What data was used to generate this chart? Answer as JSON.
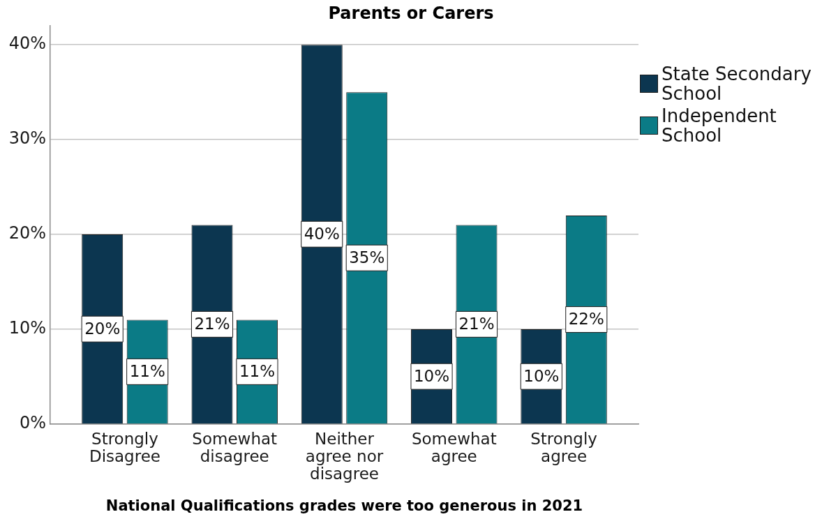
{
  "chart_data": {
    "type": "bar",
    "title": "Parents or Carers",
    "xlabel": "National Qualifications grades were too generous in 2021",
    "categories": [
      "Strongly Disagree",
      "Somewhat disagree",
      "Neither agree nor disagree",
      "Somewhat agree",
      "Strongly agree"
    ],
    "series": [
      {
        "name": "State Secondary School",
        "color": "#0c3650",
        "values": [
          20,
          21,
          40,
          10,
          10
        ],
        "value_labels": [
          "20%",
          "21%",
          "40%",
          "10%",
          "10%"
        ]
      },
      {
        "name": "Independent School",
        "color": "#0b7b86",
        "values": [
          11,
          11,
          35,
          21,
          22
        ],
        "value_labels": [
          "11%",
          "11%",
          "35%",
          "21%",
          "22%"
        ]
      }
    ],
    "ylim": [
      0,
      42
    ],
    "yticks": [
      {
        "value": 0,
        "label": "0%"
      },
      {
        "value": 10,
        "label": "10%"
      },
      {
        "value": 20,
        "label": "20%"
      },
      {
        "value": 30,
        "label": "30%"
      },
      {
        "value": 40,
        "label": "40%"
      }
    ],
    "grid": "y",
    "legend": "top right"
  }
}
